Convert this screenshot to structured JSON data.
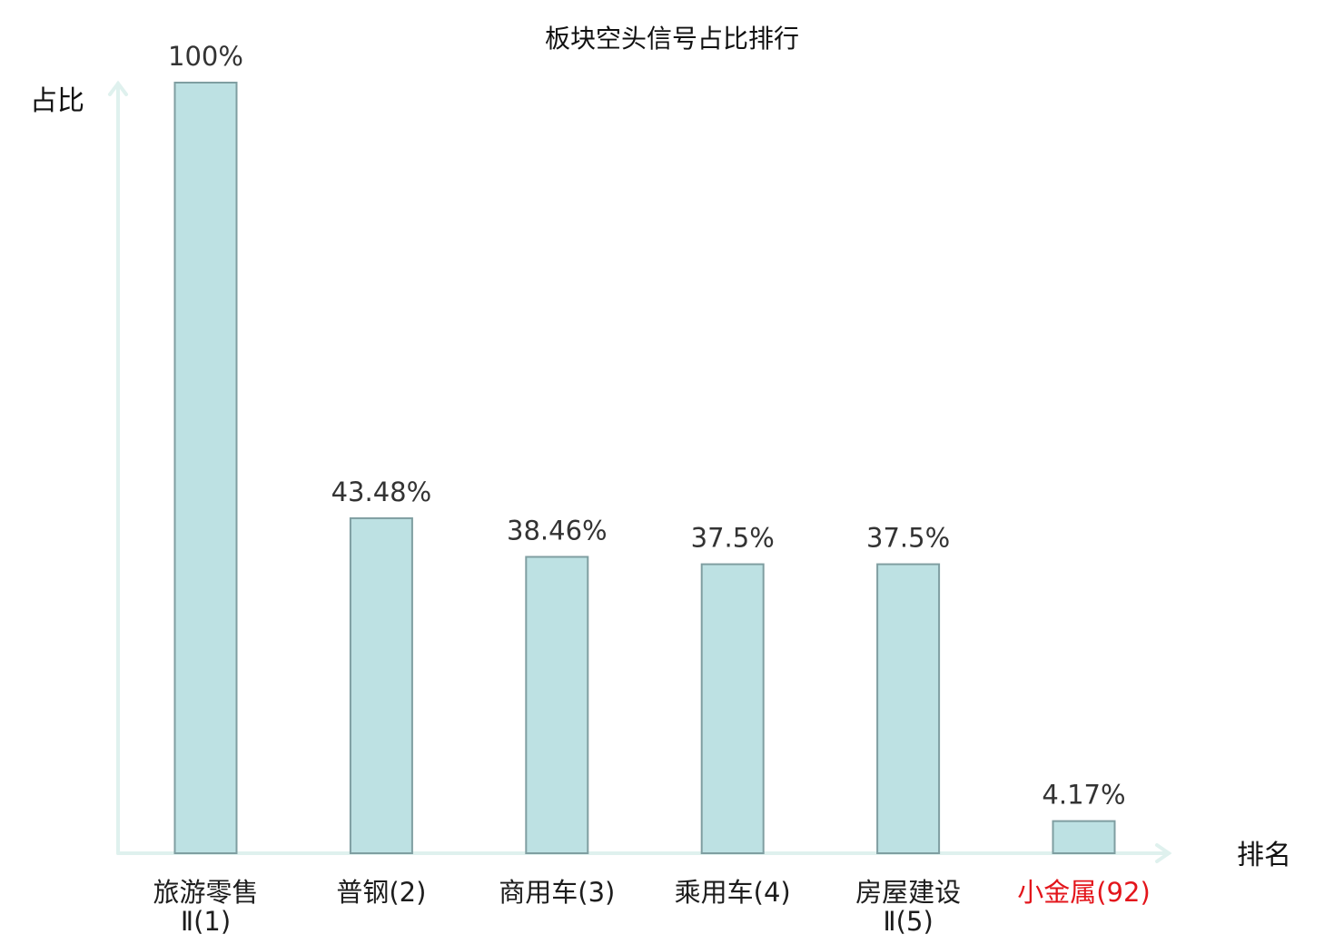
{
  "chart_data": {
    "type": "bar",
    "title": "板块空头信号占比排行",
    "xlabel": "排名",
    "ylabel": "占比",
    "ylim": [
      0,
      100
    ],
    "grid": false,
    "categories": [
      [
        "旅游零售",
        "Ⅱ(1)"
      ],
      [
        "普钢(2)"
      ],
      [
        "商用车(3)"
      ],
      [
        "乘用车(4)"
      ],
      [
        "房屋建设",
        "Ⅱ(5)"
      ],
      [
        "小金属(92)"
      ]
    ],
    "values": [
      100,
      43.48,
      38.46,
      37.5,
      37.5,
      4.17
    ],
    "value_labels": [
      "100%",
      "43.48%",
      "38.46%",
      "37.5%",
      "37.5%",
      "4.17%"
    ],
    "highlight_index": 5,
    "colors": {
      "bar_fill": "#bde1e3",
      "bar_stroke": "#7f9ea1",
      "axis": "#dff1ee",
      "highlight": "#e3151b"
    }
  }
}
